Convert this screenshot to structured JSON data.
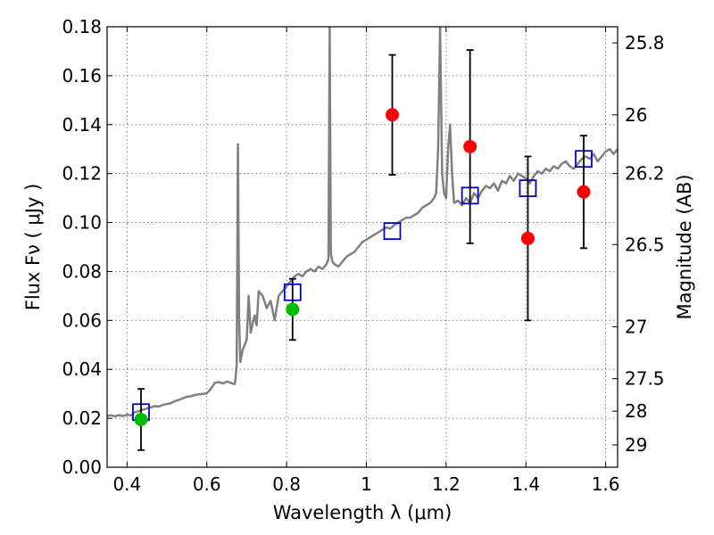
{
  "chart_data": {
    "type": "scatter",
    "xlabel": "Wavelength  λ (μm)",
    "ylabel": "Flux  Fν  ( μJy )",
    "ylabel_right": "Magnitude (AB)",
    "xlim": [
      0.35,
      1.63
    ],
    "ylim": [
      0.0,
      0.18
    ],
    "grid": true,
    "x_ticks": [
      0.4,
      0.6,
      0.8,
      1.0,
      1.2,
      1.4,
      1.6
    ],
    "x_tick_labels": [
      "0.4",
      "0.6",
      "0.8",
      "1",
      "1.2",
      "1.4",
      "1.6"
    ],
    "y_ticks": [
      0.0,
      0.02,
      0.04,
      0.06,
      0.08,
      0.1,
      0.12,
      0.14,
      0.16,
      0.18
    ],
    "y_tick_labels": [
      "0.00",
      "0.02",
      "0.04",
      "0.06",
      "0.08",
      "0.10",
      "0.12",
      "0.14",
      "0.16",
      "0.18"
    ],
    "right_ticks": [
      {
        "label": "25.8",
        "flux": 0.1734
      },
      {
        "label": "26",
        "flux": 0.144
      },
      {
        "label": "26.2",
        "flux": 0.12
      },
      {
        "label": "26.5",
        "flux": 0.091
      },
      {
        "label": "27",
        "flux": 0.0574
      },
      {
        "label": "27.5",
        "flux": 0.0362
      },
      {
        "label": "28",
        "flux": 0.0229
      },
      {
        "label": "29",
        "flux": 0.0091
      }
    ],
    "series": [
      {
        "kind": "line",
        "color": "#808080",
        "points": [
          [
            0.35,
            0.021
          ],
          [
            0.36,
            0.0212
          ],
          [
            0.37,
            0.0208
          ],
          [
            0.38,
            0.0213
          ],
          [
            0.39,
            0.0209
          ],
          [
            0.4,
            0.0215
          ],
          [
            0.41,
            0.0212
          ],
          [
            0.42,
            0.0225
          ],
          [
            0.43,
            0.023
          ],
          [
            0.44,
            0.0235
          ],
          [
            0.45,
            0.024
          ],
          [
            0.46,
            0.0245
          ],
          [
            0.47,
            0.025
          ],
          [
            0.48,
            0.0248
          ],
          [
            0.49,
            0.0255
          ],
          [
            0.5,
            0.0258
          ],
          [
            0.51,
            0.0262
          ],
          [
            0.52,
            0.027
          ],
          [
            0.53,
            0.0275
          ],
          [
            0.54,
            0.0282
          ],
          [
            0.55,
            0.0288
          ],
          [
            0.56,
            0.029
          ],
          [
            0.57,
            0.0295
          ],
          [
            0.58,
            0.0298
          ],
          [
            0.59,
            0.03
          ],
          [
            0.6,
            0.0302
          ],
          [
            0.61,
            0.032
          ],
          [
            0.62,
            0.0345
          ],
          [
            0.63,
            0.0348
          ],
          [
            0.64,
            0.0342
          ],
          [
            0.65,
            0.035
          ],
          [
            0.66,
            0.0345
          ],
          [
            0.67,
            0.034
          ],
          [
            0.672,
            0.036
          ],
          [
            0.675,
            0.042
          ],
          [
            0.678,
            0.132
          ],
          [
            0.681,
            0.06
          ],
          [
            0.684,
            0.043
          ],
          [
            0.69,
            0.048
          ],
          [
            0.7,
            0.052
          ],
          [
            0.705,
            0.07
          ],
          [
            0.71,
            0.055
          ],
          [
            0.72,
            0.062
          ],
          [
            0.725,
            0.058
          ],
          [
            0.73,
            0.072
          ],
          [
            0.74,
            0.07
          ],
          [
            0.75,
            0.065
          ],
          [
            0.76,
            0.068
          ],
          [
            0.77,
            0.06
          ],
          [
            0.78,
            0.07
          ],
          [
            0.79,
            0.072
          ],
          [
            0.8,
            0.074
          ],
          [
            0.81,
            0.076
          ],
          [
            0.82,
            0.078
          ],
          [
            0.83,
            0.079
          ],
          [
            0.84,
            0.078
          ],
          [
            0.85,
            0.08
          ],
          [
            0.86,
            0.081
          ],
          [
            0.87,
            0.08
          ],
          [
            0.88,
            0.082
          ],
          [
            0.89,
            0.081
          ],
          [
            0.9,
            0.083
          ],
          [
            0.905,
            0.085
          ],
          [
            0.908,
            0.18
          ],
          [
            0.911,
            0.087
          ],
          [
            0.915,
            0.084
          ],
          [
            0.92,
            0.083
          ],
          [
            0.93,
            0.082
          ],
          [
            0.94,
            0.084
          ],
          [
            0.95,
            0.086
          ],
          [
            0.96,
            0.087
          ],
          [
            0.97,
            0.088
          ],
          [
            0.98,
            0.09
          ],
          [
            0.99,
            0.092
          ],
          [
            1.0,
            0.093
          ],
          [
            1.01,
            0.094
          ],
          [
            1.02,
            0.095
          ],
          [
            1.03,
            0.096
          ],
          [
            1.04,
            0.097
          ],
          [
            1.05,
            0.098
          ],
          [
            1.06,
            0.0975
          ],
          [
            1.07,
            0.099
          ],
          [
            1.08,
            0.1
          ],
          [
            1.09,
            0.101
          ],
          [
            1.1,
            0.102
          ],
          [
            1.11,
            0.102
          ],
          [
            1.12,
            0.103
          ],
          [
            1.13,
            0.104
          ],
          [
            1.14,
            0.106
          ],
          [
            1.15,
            0.107
          ],
          [
            1.16,
            0.108
          ],
          [
            1.17,
            0.11
          ],
          [
            1.175,
            0.112
          ],
          [
            1.18,
            0.13
          ],
          [
            1.185,
            0.18
          ],
          [
            1.19,
            0.12
          ],
          [
            1.195,
            0.112
          ],
          [
            1.2,
            0.11
          ],
          [
            1.205,
            0.13
          ],
          [
            1.21,
            0.14
          ],
          [
            1.215,
            0.12
          ],
          [
            1.22,
            0.108
          ],
          [
            1.23,
            0.109
          ],
          [
            1.24,
            0.107
          ],
          [
            1.25,
            0.11
          ],
          [
            1.26,
            0.108
          ],
          [
            1.27,
            0.112
          ],
          [
            1.28,
            0.11
          ],
          [
            1.29,
            0.113
          ],
          [
            1.3,
            0.115
          ],
          [
            1.31,
            0.114
          ],
          [
            1.32,
            0.116
          ],
          [
            1.33,
            0.113
          ],
          [
            1.34,
            0.117
          ],
          [
            1.35,
            0.116
          ],
          [
            1.36,
            0.119
          ],
          [
            1.37,
            0.117
          ],
          [
            1.38,
            0.12
          ],
          [
            1.39,
            0.119
          ],
          [
            1.4,
            0.118
          ],
          [
            1.41,
            0.116
          ],
          [
            1.42,
            0.119
          ],
          [
            1.43,
            0.121
          ],
          [
            1.44,
            0.12
          ],
          [
            1.45,
            0.122
          ],
          [
            1.46,
            0.121
          ],
          [
            1.47,
            0.123
          ],
          [
            1.48,
            0.122
          ],
          [
            1.49,
            0.124
          ],
          [
            1.5,
            0.125
          ],
          [
            1.51,
            0.123
          ],
          [
            1.52,
            0.122
          ],
          [
            1.53,
            0.124
          ],
          [
            1.54,
            0.126
          ],
          [
            1.55,
            0.127
          ],
          [
            1.56,
            0.126
          ],
          [
            1.57,
            0.128
          ],
          [
            1.58,
            0.125
          ],
          [
            1.59,
            0.127
          ],
          [
            1.6,
            0.129
          ],
          [
            1.61,
            0.13
          ],
          [
            1.62,
            0.128
          ],
          [
            1.63,
            0.13
          ]
        ]
      },
      {
        "kind": "open-square",
        "color": "#0000cc",
        "points": [
          [
            0.435,
            0.0225
          ],
          [
            0.815,
            0.0715
          ],
          [
            1.065,
            0.0965
          ],
          [
            1.26,
            0.111
          ],
          [
            1.405,
            0.114
          ],
          [
            1.545,
            0.126
          ]
        ]
      },
      {
        "kind": "errorbar-point",
        "color": "#ff0000",
        "points": [
          {
            "x": 1.065,
            "y": 0.144,
            "err": 0.0245
          },
          {
            "x": 1.26,
            "y": 0.131,
            "err": 0.0395
          },
          {
            "x": 1.405,
            "y": 0.0935,
            "err": 0.0335
          },
          {
            "x": 1.545,
            "y": 0.1125,
            "err": 0.023
          }
        ]
      },
      {
        "kind": "errorbar-point",
        "color": "#00bb00",
        "points": [
          {
            "x": 0.435,
            "y": 0.0195,
            "err": 0.0125
          },
          {
            "x": 0.815,
            "y": 0.0645,
            "err": 0.0125
          }
        ]
      }
    ]
  }
}
